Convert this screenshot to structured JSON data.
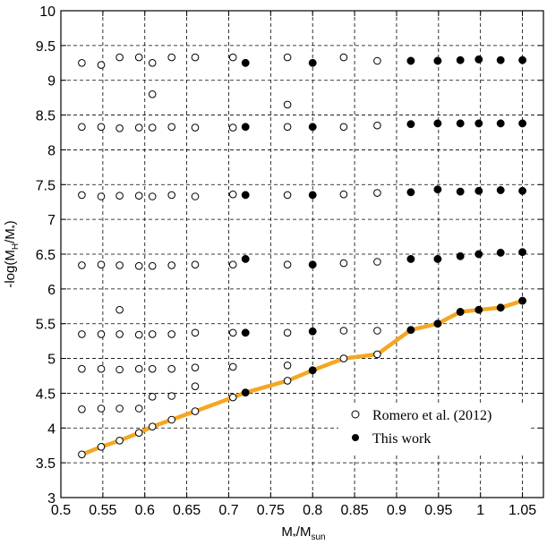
{
  "chart_data": {
    "type": "scatter",
    "title": "",
    "xlabel": {
      "main": "M",
      "sub1": "*",
      "mid": "/M",
      "sub2": "sun"
    },
    "ylabel": {
      "pre": "-log(M",
      "sub1": "H",
      "mid": "/M",
      "sub2": "*",
      "post": ")"
    },
    "xlim": [
      0.5,
      1.075
    ],
    "ylim": [
      3,
      10
    ],
    "x_ticks": [
      0.5,
      0.55,
      0.6,
      0.65,
      0.7,
      0.75,
      0.8,
      0.85,
      0.9,
      0.95,
      1,
      1.05
    ],
    "x_tick_labels": [
      "0.5",
      "0.55",
      "0.6",
      "0.65",
      "0.7",
      "0.75",
      "0.8",
      "0.85",
      "0.9",
      "0.95",
      "1",
      "1.05"
    ],
    "y_ticks": [
      3,
      3.5,
      4,
      4.5,
      5,
      5.5,
      6,
      6.5,
      7,
      7.5,
      8,
      8.5,
      9,
      9.5,
      10
    ],
    "y_tick_labels": [
      "3",
      "3.5",
      "4",
      "4.5",
      "5",
      "5.5",
      "6",
      "6.5",
      "7",
      "7.5",
      "8",
      "8.5",
      "9",
      "9.5",
      "10"
    ],
    "grid": "dashed",
    "legend_position": "bottom-right",
    "legend": [
      {
        "label": "Romero et al. (2012)",
        "marker": "open-circle"
      },
      {
        "label": "This work",
        "marker": "filled-circle"
      }
    ],
    "line_color": "#F5A623",
    "series": [
      {
        "name": "Romero et al. (2012)",
        "marker": "open-circle",
        "points": [
          [
            0.525,
            9.25
          ],
          [
            0.548,
            9.22
          ],
          [
            0.57,
            9.33
          ],
          [
            0.593,
            9.33
          ],
          [
            0.609,
            9.25
          ],
          [
            0.632,
            9.33
          ],
          [
            0.66,
            9.33
          ],
          [
            0.705,
            9.33
          ],
          [
            0.77,
            9.33
          ],
          [
            0.837,
            9.33
          ],
          [
            0.877,
            9.28
          ],
          [
            0.609,
            8.8
          ],
          [
            0.77,
            8.65
          ],
          [
            0.525,
            8.33
          ],
          [
            0.548,
            8.33
          ],
          [
            0.57,
            8.31
          ],
          [
            0.593,
            8.32
          ],
          [
            0.609,
            8.32
          ],
          [
            0.632,
            8.33
          ],
          [
            0.66,
            8.32
          ],
          [
            0.705,
            8.32
          ],
          [
            0.77,
            8.33
          ],
          [
            0.837,
            8.33
          ],
          [
            0.877,
            8.35
          ],
          [
            0.525,
            7.35
          ],
          [
            0.548,
            7.33
          ],
          [
            0.57,
            7.34
          ],
          [
            0.593,
            7.34
          ],
          [
            0.609,
            7.33
          ],
          [
            0.632,
            7.35
          ],
          [
            0.66,
            7.33
          ],
          [
            0.705,
            7.36
          ],
          [
            0.77,
            7.35
          ],
          [
            0.837,
            7.36
          ],
          [
            0.877,
            7.38
          ],
          [
            0.525,
            6.34
          ],
          [
            0.548,
            6.35
          ],
          [
            0.57,
            6.34
          ],
          [
            0.593,
            6.33
          ],
          [
            0.609,
            6.33
          ],
          [
            0.632,
            6.34
          ],
          [
            0.66,
            6.35
          ],
          [
            0.705,
            6.35
          ],
          [
            0.77,
            6.35
          ],
          [
            0.837,
            6.37
          ],
          [
            0.877,
            6.39
          ],
          [
            0.57,
            5.7
          ],
          [
            0.525,
            5.35
          ],
          [
            0.548,
            5.35
          ],
          [
            0.57,
            5.35
          ],
          [
            0.593,
            5.34
          ],
          [
            0.609,
            5.35
          ],
          [
            0.632,
            5.35
          ],
          [
            0.66,
            5.37
          ],
          [
            0.705,
            5.37
          ],
          [
            0.77,
            5.37
          ],
          [
            0.837,
            5.4
          ],
          [
            0.877,
            5.4
          ],
          [
            0.525,
            4.85
          ],
          [
            0.548,
            4.85
          ],
          [
            0.57,
            4.84
          ],
          [
            0.593,
            4.85
          ],
          [
            0.609,
            4.85
          ],
          [
            0.632,
            4.85
          ],
          [
            0.66,
            4.87
          ],
          [
            0.705,
            4.88
          ],
          [
            0.77,
            4.9
          ],
          [
            0.66,
            4.6
          ],
          [
            0.609,
            4.45
          ],
          [
            0.632,
            4.46
          ],
          [
            0.525,
            4.27
          ],
          [
            0.548,
            4.28
          ],
          [
            0.57,
            4.28
          ],
          [
            0.593,
            4.28
          ],
          [
            0.525,
            3.62
          ],
          [
            0.548,
            3.73
          ],
          [
            0.57,
            3.82
          ],
          [
            0.593,
            3.93
          ],
          [
            0.609,
            4.02
          ],
          [
            0.632,
            4.12
          ],
          [
            0.66,
            4.24
          ],
          [
            0.705,
            4.44
          ],
          [
            0.77,
            4.68
          ],
          [
            0.837,
            5.0
          ],
          [
            0.877,
            5.06
          ]
        ]
      },
      {
        "name": "This work",
        "marker": "filled-circle",
        "points": [
          [
            0.72,
            9.25
          ],
          [
            0.8,
            9.25
          ],
          [
            0.917,
            9.28
          ],
          [
            0.949,
            9.28
          ],
          [
            0.976,
            9.29
          ],
          [
            0.998,
            9.3
          ],
          [
            1.024,
            9.29
          ],
          [
            1.05,
            9.29
          ],
          [
            0.72,
            8.33
          ],
          [
            0.8,
            8.33
          ],
          [
            0.917,
            8.37
          ],
          [
            0.949,
            8.38
          ],
          [
            0.976,
            8.38
          ],
          [
            0.998,
            8.38
          ],
          [
            1.024,
            8.38
          ],
          [
            1.05,
            8.38
          ],
          [
            0.72,
            7.35
          ],
          [
            0.8,
            7.35
          ],
          [
            0.917,
            7.39
          ],
          [
            0.949,
            7.43
          ],
          [
            0.976,
            7.4
          ],
          [
            0.998,
            7.41
          ],
          [
            1.024,
            7.42
          ],
          [
            1.05,
            7.41
          ],
          [
            0.72,
            6.43
          ],
          [
            0.8,
            6.35
          ],
          [
            0.917,
            6.43
          ],
          [
            0.949,
            6.43
          ],
          [
            0.976,
            6.47
          ],
          [
            0.998,
            6.5
          ],
          [
            1.024,
            6.52
          ],
          [
            1.05,
            6.53
          ],
          [
            0.72,
            5.37
          ],
          [
            0.8,
            5.39
          ],
          [
            0.917,
            5.41
          ],
          [
            0.949,
            5.5
          ],
          [
            0.976,
            5.67
          ],
          [
            0.998,
            5.7
          ],
          [
            1.024,
            5.73
          ],
          [
            1.05,
            5.83
          ],
          [
            0.72,
            4.51
          ],
          [
            0.8,
            4.83
          ]
        ]
      },
      {
        "name": "",
        "type": "line",
        "color": "#F5A623",
        "points": [
          [
            0.525,
            3.62
          ],
          [
            0.548,
            3.73
          ],
          [
            0.57,
            3.82
          ],
          [
            0.593,
            3.93
          ],
          [
            0.609,
            4.02
          ],
          [
            0.632,
            4.12
          ],
          [
            0.66,
            4.24
          ],
          [
            0.705,
            4.44
          ],
          [
            0.72,
            4.51
          ],
          [
            0.77,
            4.68
          ],
          [
            0.8,
            4.83
          ],
          [
            0.837,
            5.0
          ],
          [
            0.877,
            5.06
          ],
          [
            0.917,
            5.41
          ],
          [
            0.949,
            5.5
          ],
          [
            0.976,
            5.67
          ],
          [
            0.998,
            5.7
          ],
          [
            1.024,
            5.73
          ],
          [
            1.05,
            5.83
          ]
        ]
      }
    ]
  }
}
